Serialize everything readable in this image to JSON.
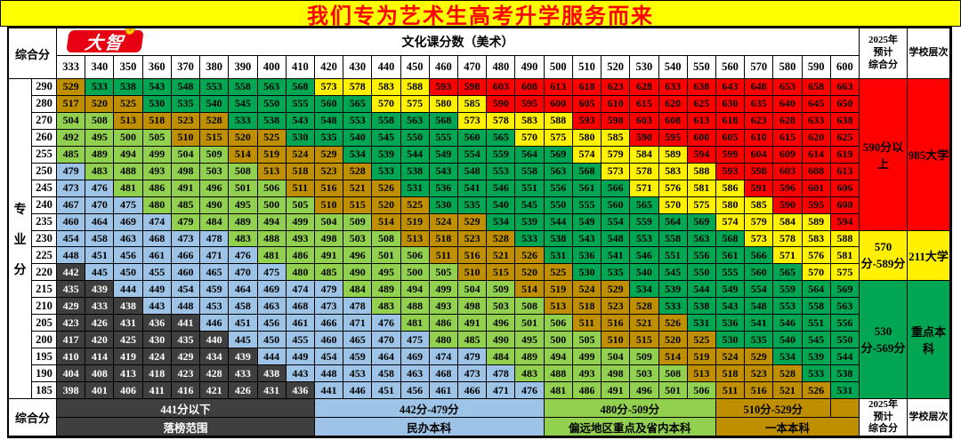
{
  "banner": {
    "title": "我们专为艺术生高考升学服务而来",
    "bg": "#FFFF00",
    "fg": "#FF0000"
  },
  "logo": {
    "text": "大智",
    "bg": "#E60012",
    "sun_icon": "sun-badge"
  },
  "header": {
    "left_label": "综合分",
    "main_label": "文化课分数（美术）",
    "predict_label": "2025年\n预计\n综合分",
    "tier_label": "学校层次"
  },
  "left": {
    "vertical_label": "专业分"
  },
  "chart_data": {
    "type": "heatmap",
    "title": "文化课分数（美术）",
    "xlabel": "文化课分数",
    "ylabel": "专业分",
    "columns": [
      333,
      340,
      350,
      360,
      370,
      380,
      390,
      400,
      410,
      420,
      430,
      440,
      450,
      460,
      470,
      480,
      490,
      500,
      510,
      520,
      530,
      540,
      550,
      560,
      570,
      580,
      590,
      600
    ],
    "rows": [
      290,
      280,
      270,
      260,
      255,
      250,
      245,
      240,
      235,
      230,
      225,
      220,
      215,
      210,
      205,
      200,
      195,
      190,
      185
    ],
    "values": [
      [
        529,
        533,
        538,
        543,
        548,
        553,
        558,
        563,
        568,
        573,
        578,
        583,
        588,
        593,
        598,
        603,
        608,
        613,
        618,
        623,
        628,
        633,
        638,
        643,
        648,
        653,
        658,
        663
      ],
      [
        517,
        520,
        525,
        530,
        535,
        540,
        545,
        550,
        555,
        560,
        565,
        570,
        575,
        580,
        585,
        590,
        595,
        600,
        605,
        610,
        615,
        620,
        625,
        630,
        635,
        640,
        645,
        650
      ],
      [
        504,
        508,
        513,
        518,
        523,
        528,
        533,
        538,
        543,
        548,
        553,
        558,
        563,
        568,
        573,
        578,
        583,
        588,
        593,
        598,
        603,
        608,
        613,
        618,
        623,
        628,
        633,
        638
      ],
      [
        492,
        495,
        500,
        505,
        510,
        515,
        520,
        525,
        530,
        535,
        540,
        545,
        550,
        555,
        560,
        565,
        570,
        575,
        580,
        585,
        590,
        595,
        600,
        605,
        610,
        615,
        620,
        625
      ],
      [
        485,
        489,
        494,
        499,
        504,
        509,
        514,
        519,
        524,
        529,
        534,
        539,
        544,
        549,
        554,
        559,
        564,
        569,
        574,
        579,
        584,
        589,
        594,
        599,
        604,
        609,
        614,
        619
      ],
      [
        479,
        483,
        488,
        493,
        498,
        503,
        508,
        513,
        518,
        523,
        528,
        533,
        538,
        543,
        548,
        553,
        558,
        563,
        568,
        573,
        578,
        583,
        588,
        593,
        598,
        603,
        608,
        613
      ],
      [
        473,
        476,
        481,
        486,
        491,
        496,
        501,
        506,
        511,
        516,
        521,
        526,
        531,
        536,
        541,
        546,
        551,
        556,
        561,
        566,
        571,
        576,
        581,
        586,
        591,
        596,
        601,
        606
      ],
      [
        467,
        470,
        475,
        480,
        485,
        490,
        495,
        500,
        505,
        510,
        515,
        520,
        525,
        530,
        535,
        540,
        545,
        550,
        555,
        560,
        565,
        570,
        575,
        580,
        585,
        590,
        595,
        600
      ],
      [
        460,
        464,
        469,
        474,
        479,
        484,
        489,
        494,
        499,
        504,
        509,
        514,
        519,
        524,
        529,
        534,
        539,
        544,
        549,
        554,
        559,
        564,
        569,
        574,
        579,
        584,
        589,
        594
      ],
      [
        454,
        458,
        463,
        468,
        473,
        478,
        483,
        488,
        493,
        498,
        503,
        508,
        513,
        518,
        523,
        528,
        533,
        538,
        543,
        548,
        553,
        558,
        563,
        568,
        573,
        578,
        583,
        588
      ],
      [
        448,
        451,
        456,
        461,
        466,
        471,
        476,
        481,
        486,
        491,
        496,
        501,
        506,
        511,
        516,
        521,
        526,
        531,
        536,
        541,
        546,
        551,
        556,
        561,
        566,
        571,
        576,
        581
      ],
      [
        442,
        445,
        450,
        455,
        460,
        465,
        470,
        475,
        480,
        485,
        490,
        495,
        500,
        505,
        510,
        515,
        520,
        525,
        530,
        535,
        540,
        545,
        550,
        555,
        560,
        565,
        570,
        575
      ],
      [
        435,
        439,
        444,
        449,
        454,
        459,
        464,
        469,
        474,
        479,
        484,
        489,
        494,
        499,
        504,
        509,
        514,
        519,
        524,
        529,
        534,
        539,
        544,
        549,
        554,
        559,
        564,
        569
      ],
      [
        429,
        433,
        438,
        443,
        448,
        453,
        458,
        463,
        468,
        473,
        478,
        483,
        488,
        493,
        498,
        503,
        508,
        513,
        518,
        523,
        528,
        533,
        538,
        543,
        548,
        553,
        558,
        563
      ],
      [
        423,
        426,
        431,
        436,
        441,
        446,
        451,
        456,
        461,
        466,
        471,
        476,
        481,
        486,
        491,
        496,
        501,
        506,
        511,
        516,
        521,
        526,
        531,
        536,
        541,
        546,
        551,
        556
      ],
      [
        417,
        420,
        425,
        430,
        435,
        440,
        445,
        450,
        455,
        460,
        465,
        470,
        475,
        480,
        485,
        490,
        495,
        500,
        505,
        510,
        515,
        520,
        525,
        530,
        535,
        540,
        545,
        550
      ],
      [
        410,
        414,
        419,
        424,
        429,
        434,
        439,
        444,
        449,
        454,
        459,
        464,
        469,
        474,
        479,
        484,
        489,
        494,
        499,
        504,
        509,
        514,
        519,
        524,
        529,
        534,
        539,
        544
      ],
      [
        404,
        408,
        413,
        418,
        423,
        428,
        433,
        438,
        443,
        448,
        453,
        458,
        463,
        468,
        473,
        478,
        483,
        488,
        493,
        498,
        503,
        508,
        513,
        518,
        523,
        528,
        533,
        538
      ],
      [
        398,
        401,
        406,
        411,
        416,
        421,
        426,
        431,
        436,
        441,
        446,
        451,
        456,
        461,
        466,
        471,
        476,
        481,
        486,
        491,
        496,
        501,
        506,
        511,
        516,
        521,
        526,
        531
      ]
    ],
    "bands": [
      {
        "range": "441分以下",
        "label": "落榜范围",
        "max": 441,
        "bg": "#3F3F3F",
        "fg": "#FFFFFF"
      },
      {
        "range": "442分-479分",
        "label": "民办本科",
        "max": 479,
        "bg": "#9DC3E6",
        "fg": "#000000"
      },
      {
        "range": "480分-509分",
        "label": "偏远地区重点及省内本科",
        "max": 509,
        "bg": "#92D050",
        "fg": "#000000"
      },
      {
        "range": "510分-529分",
        "label": "一本本科",
        "max": 529,
        "bg": "#BF8F00",
        "fg": "#000000"
      },
      {
        "range": "530分-569分",
        "label": "重点本科",
        "max": 569,
        "bg": "#00A651",
        "fg": "#000000"
      },
      {
        "range": "570分-589分",
        "label": "211大学",
        "max": 589,
        "bg": "#FFF100",
        "fg": "#000000"
      },
      {
        "range": "590分以上",
        "label": "985大学",
        "max": 9999,
        "bg": "#FE0000",
        "fg": "#000000"
      }
    ],
    "color_exceptions": [
      {
        "row": 220,
        "col": 333,
        "band": 0
      },
      {
        "row": 235,
        "col": 370,
        "band": 2
      },
      {
        "row": 185,
        "col": 420,
        "band": 1
      }
    ]
  },
  "right_blocks": [
    {
      "score": "590分以上",
      "tier": "985大学",
      "rows": 9,
      "bg": "#FE0000",
      "fg": "#000000"
    },
    {
      "score": "570分-589分",
      "tier": "211大学",
      "rows": 3,
      "bg": "#FFF100",
      "fg": "#000000"
    },
    {
      "score": "530分-569分",
      "tier": "重点本科",
      "rows": 7,
      "bg": "#00A651",
      "fg": "#000000"
    }
  ],
  "legend": {
    "left_label": "综合分",
    "row1": [
      {
        "text": "441分以下",
        "cols": 9,
        "band": 0
      },
      {
        "text": "442分-479分",
        "cols": 8,
        "band": 1
      },
      {
        "text": "480分-509分",
        "cols": 6,
        "band": 2
      },
      {
        "text": "510分-529分",
        "cols": 4,
        "band": 3
      },
      {
        "text": "",
        "cols": 1,
        "band": 3
      }
    ],
    "row2": [
      {
        "text": "落榜范围",
        "cols": 9,
        "band": 0
      },
      {
        "text": "民办本科",
        "cols": 8,
        "band": 1
      },
      {
        "text": "偏远地区重点及省内本科",
        "cols": 6,
        "band": 2
      },
      {
        "text": "一本本科",
        "cols": 5,
        "band": 3
      }
    ],
    "predict_label": "2025年\n预计\n综合分",
    "tier_label": "学校层次"
  }
}
